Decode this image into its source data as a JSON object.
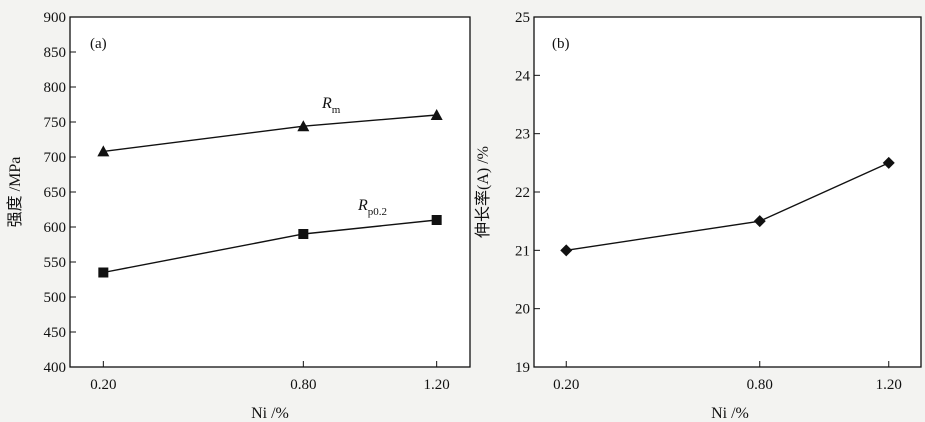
{
  "chart_data": [
    {
      "type": "line",
      "panel_label": "(a)",
      "categories": [
        "0.20",
        "0.80",
        "1.20"
      ],
      "x": [
        0.2,
        0.8,
        1.2
      ],
      "xlabel": "Ni /%",
      "ylabel": "强度 /MPa",
      "ylim": [
        400,
        900
      ],
      "yticks": [
        400,
        450,
        500,
        550,
        600,
        650,
        700,
        750,
        800,
        850,
        900
      ],
      "grid": false,
      "series": [
        {
          "name": "Rm",
          "label_main": "R",
          "label_sub": "m",
          "marker": "triangle",
          "values": [
            708,
            744,
            760
          ]
        },
        {
          "name": "Rp0.2",
          "label_main": "R",
          "label_sub": "p0.2",
          "marker": "square",
          "values": [
            535,
            590,
            610
          ]
        }
      ]
    },
    {
      "type": "line",
      "panel_label": "(b)",
      "categories": [
        "0.20",
        "0.80",
        "1.20"
      ],
      "x": [
        0.2,
        0.8,
        1.2
      ],
      "xlabel": "Ni /%",
      "ylabel": "伸长率(A) /%",
      "ylim": [
        19,
        25
      ],
      "yticks": [
        19,
        20,
        21,
        22,
        23,
        24,
        25
      ],
      "grid": false,
      "series": [
        {
          "marker": "diamond",
          "values": [
            21.0,
            21.5,
            22.5
          ]
        }
      ]
    }
  ]
}
